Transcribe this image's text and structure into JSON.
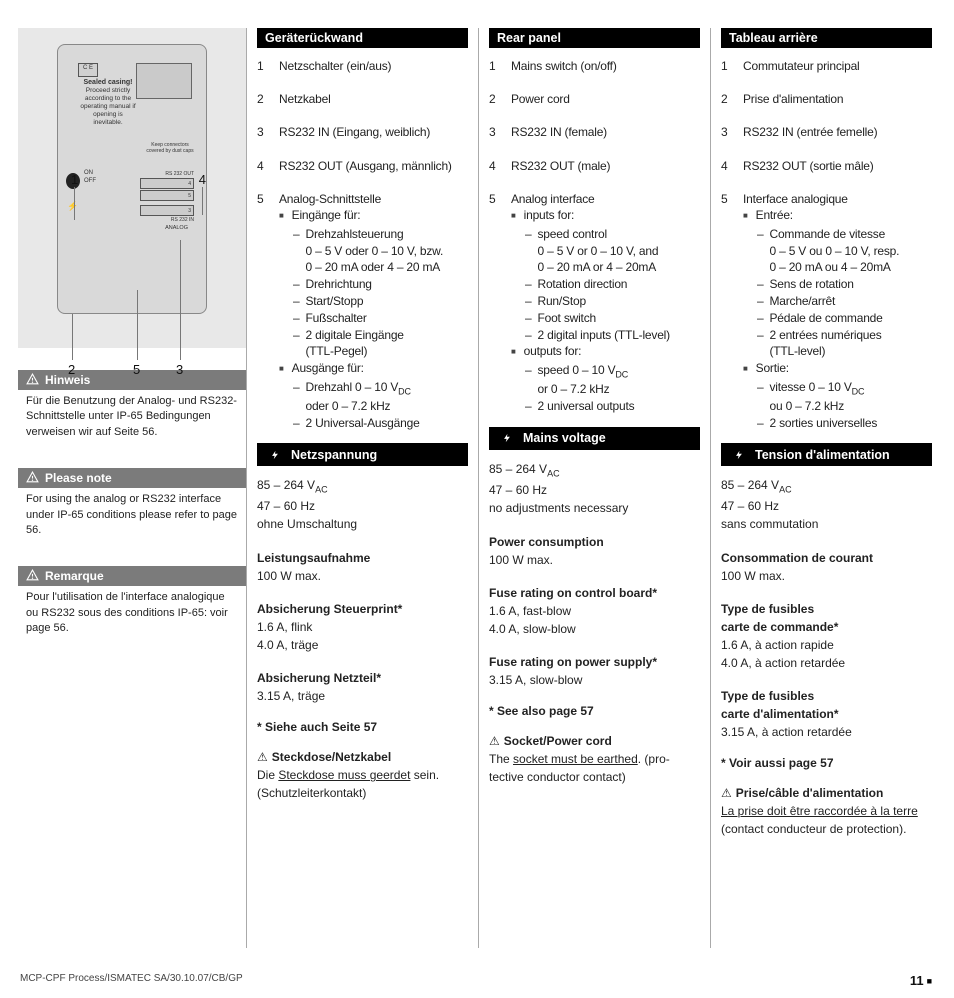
{
  "footer": {
    "doc_ref": "MCP-CPF Process/ISMATEC SA/30.10.07/CB/GP",
    "page": "11"
  },
  "sidebar": {
    "diagram": {
      "callouts": [
        "1",
        "4",
        "2",
        "5",
        "3"
      ],
      "sealed_title": "Sealed casing!",
      "sealed_text": "Proceed strictly according to the operating manual if opening is inevitable.",
      "switch_on": "ON",
      "switch_off": "OFF",
      "keepconn": "Keep connectors covered by dust caps",
      "analog_lbl": "ANALOG"
    },
    "notes": [
      {
        "title": "Hinweis",
        "body": "Für die Benutzung der Analog- und RS232-Schnittstelle unter IP-65 Be­dingungen verweisen wir auf Seite 56."
      },
      {
        "title": "Please note",
        "body": "For using the analog or RS232 inter­face under IP-65 conditions please refer to page 56."
      },
      {
        "title": "Remarque",
        "body": "Pour l'utilisation de l'interface analogique ou RS232 sous des condi­tions IP-65: voir page 56."
      }
    ]
  },
  "cols": [
    {
      "h1": "Geräterückwand",
      "items": [
        {
          "n": "1",
          "t": "Netzschalter (ein/aus)"
        },
        {
          "n": "2",
          "t": "Netzkabel"
        },
        {
          "n": "3",
          "t": "RS232 IN (Eingang, weiblich)"
        },
        {
          "n": "4",
          "t": "RS232 OUT (Ausgang, männlich)"
        },
        {
          "n": "5",
          "t": "Analog-Schnittstelle",
          "inputs_label": "Eingänge für:",
          "inputs": [
            "Drehzahlsteuerung\n0 – 5 V oder 0 – 10 V, bzw.\n0 – 20 mA oder 4 – 20 mA",
            "Drehrichtung",
            "Start/Stopp",
            "Fußschalter",
            "2 digitale Eingänge\n(TTL-Pegel)"
          ],
          "outputs_label": "Ausgänge für:",
          "outputs": [
            "Drehzahl 0 – 10 V<dc>\noder 0 – 7.2 kHz",
            "2 Universal-Ausgänge"
          ]
        }
      ],
      "h2": "Netzspannung",
      "volt": [
        "85 – 264 V<ac>",
        "47 – 60 Hz",
        "ohne Umschaltung"
      ],
      "specs": [
        {
          "h": "Leistungsaufnahme",
          "l": [
            "100 W max."
          ]
        },
        {
          "h": "Absicherung Steuerprint*",
          "l": [
            "1.6 A, flink",
            "4.0 A, träge"
          ]
        },
        {
          "h": "Absicherung Netzteil*",
          "l": [
            "3.15 A, träge"
          ]
        }
      ],
      "see": "* Siehe auch Seite 57",
      "socket_h": "Steckdose/Netzkabel",
      "socket_t": "Die <u>Steckdose muss geerdet</u> sein. (Schutzleiterkontakt)"
    },
    {
      "h1": "Rear panel",
      "items": [
        {
          "n": "1",
          "t": "Mains switch (on/off)"
        },
        {
          "n": "2",
          "t": "Power cord"
        },
        {
          "n": "3",
          "t": "RS232 IN (female)"
        },
        {
          "n": "4",
          "t": "RS232 OUT (male)"
        },
        {
          "n": "5",
          "t": "Analog interface",
          "inputs_label": "inputs for:",
          "inputs": [
            "speed control\n0 – 5 V or 0 – 10 V, and\n0 – 20 mA or 4 – 20mA",
            "Rotation direction",
            "Run/Stop",
            "Foot switch",
            "2 digital inputs (TTL-level)"
          ],
          "outputs_label": "outputs for:",
          "outputs": [
            "speed 0 – 10 V<dc>\nor 0 – 7.2 kHz",
            "2 universal outputs"
          ]
        }
      ],
      "h2": "Mains voltage",
      "volt": [
        "85 – 264 V<ac>",
        "47 – 60 Hz",
        "no adjustments necessary"
      ],
      "specs": [
        {
          "h": "Power consumption",
          "l": [
            "100 W max."
          ]
        },
        {
          "h": "Fuse rating on control board*",
          "l": [
            "1.6 A, fast-blow",
            "4.0 A, slow-blow"
          ]
        },
        {
          "h": "Fuse rating on power supply*",
          "l": [
            "3.15 A, slow-blow"
          ]
        }
      ],
      "see": "* See also page 57",
      "socket_h": "Socket/Power cord",
      "socket_t": "The <u>socket must be earthed</u>. (pro­tective conductor contact)"
    },
    {
      "h1": "Tableau arrière",
      "items": [
        {
          "n": "1",
          "t": "Commutateur principal"
        },
        {
          "n": "2",
          "t": "Prise d'alimentation"
        },
        {
          "n": "3",
          "t": "RS232 IN (entrée femelle)"
        },
        {
          "n": "4",
          "t": "RS232 OUT (sortie mâle)"
        },
        {
          "n": "5",
          "t": "Interface analogique",
          "inputs_label": "Entrée:",
          "inputs": [
            "Commande de vitesse\n0 – 5 V ou 0 – 10 V, resp.\n0 – 20 mA ou 4 – 20mA",
            "Sens de rotation",
            "Marche/arrêt",
            "Pédale de commande",
            "2 entrées numériques\n(TTL-level)"
          ],
          "outputs_label": "Sortie:",
          "outputs": [
            "vitesse 0 – 10 V<dc>\nou 0 – 7.2 kHz",
            "2 sorties universelles"
          ]
        }
      ],
      "h2": "Tension d'alimentation",
      "volt": [
        "85 – 264 V<ac>",
        "47 – 60 Hz",
        "sans commutation"
      ],
      "specs": [
        {
          "h": "Consommation de courant",
          "l": [
            "100 W max."
          ]
        },
        {
          "h": "Type de fusibles\ncarte de commande*",
          "l": [
            "1.6 A, à action rapide",
            "4.0 A, à action retardée"
          ]
        },
        {
          "h": "Type de fusibles\ncarte d'alimentation*",
          "l": [
            "3.15 A, à action retardée"
          ]
        }
      ],
      "see": "* Voir aussi page 57",
      "socket_h": "Prise/câble d'alimentation",
      "socket_t": "<u>La prise doit être raccordée à la terre</u> (contact conducteur de protection)."
    }
  ]
}
